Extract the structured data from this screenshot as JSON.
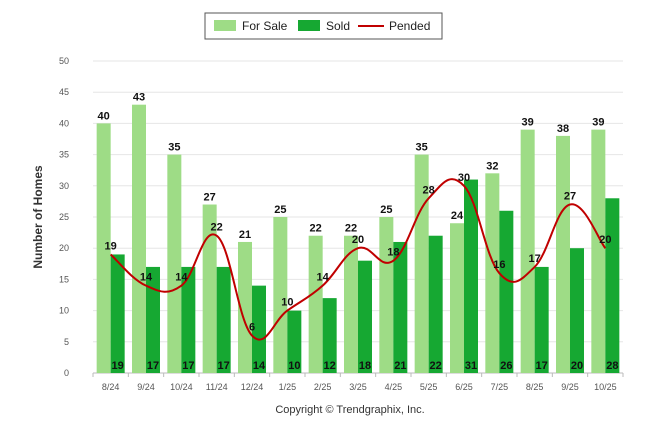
{
  "chart_data": {
    "type": "bar",
    "title": "",
    "xlabel": "",
    "ylabel": "Number of Homes",
    "ylim": [
      0,
      50
    ],
    "yticks": [
      0,
      5,
      10,
      15,
      20,
      25,
      30,
      35,
      40,
      45,
      50
    ],
    "grid": true,
    "legend_position": "top-center",
    "categories": [
      "8/24",
      "9/24",
      "10/24",
      "11/24",
      "12/24",
      "1/25",
      "2/25",
      "3/25",
      "4/25",
      "5/25",
      "6/25",
      "7/25",
      "8/25",
      "9/25",
      "10/25"
    ],
    "series": [
      {
        "name": "For Sale",
        "type": "bar",
        "color": "#9edc86",
        "values": [
          40,
          43,
          35,
          27,
          21,
          25,
          22,
          22,
          25,
          35,
          24,
          32,
          39,
          38,
          39
        ]
      },
      {
        "name": "Sold",
        "type": "bar",
        "color": "#16a832",
        "values": [
          19,
          17,
          17,
          17,
          14,
          10,
          12,
          18,
          21,
          22,
          31,
          26,
          17,
          20,
          28
        ]
      },
      {
        "name": "Pended",
        "type": "line",
        "color": "#c00000",
        "values": [
          19,
          14,
          14,
          22,
          6,
          10,
          14,
          20,
          18,
          28,
          30,
          16,
          17,
          27,
          20
        ]
      }
    ]
  },
  "footer": {
    "copyright": "Copyright © Trendgraphix, Inc."
  }
}
